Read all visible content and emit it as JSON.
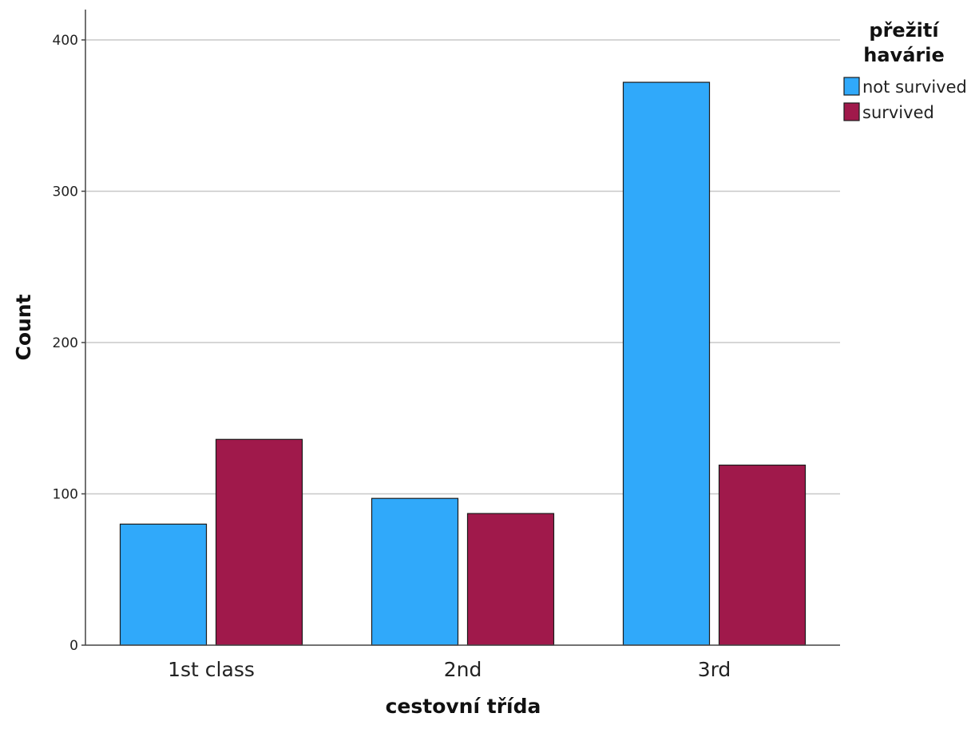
{
  "chart_data": {
    "type": "bar",
    "categories": [
      "1st class",
      "2nd",
      "3rd"
    ],
    "series": [
      {
        "name": "not survived",
        "values": [
          80,
          97,
          372
        ],
        "color": "#30A9FA"
      },
      {
        "name": "survived",
        "values": [
          136,
          87,
          119
        ],
        "color": "#A0194B"
      }
    ],
    "title": "",
    "xlabel": "cestovní třída",
    "ylabel": "Count",
    "ylim": [
      0,
      400
    ],
    "yticks": [
      "0",
      "100",
      "200",
      "300",
      "400"
    ],
    "grid": true,
    "legend": {
      "title_lines": [
        "přežití",
        "havárie"
      ],
      "placement": "top-right"
    }
  }
}
